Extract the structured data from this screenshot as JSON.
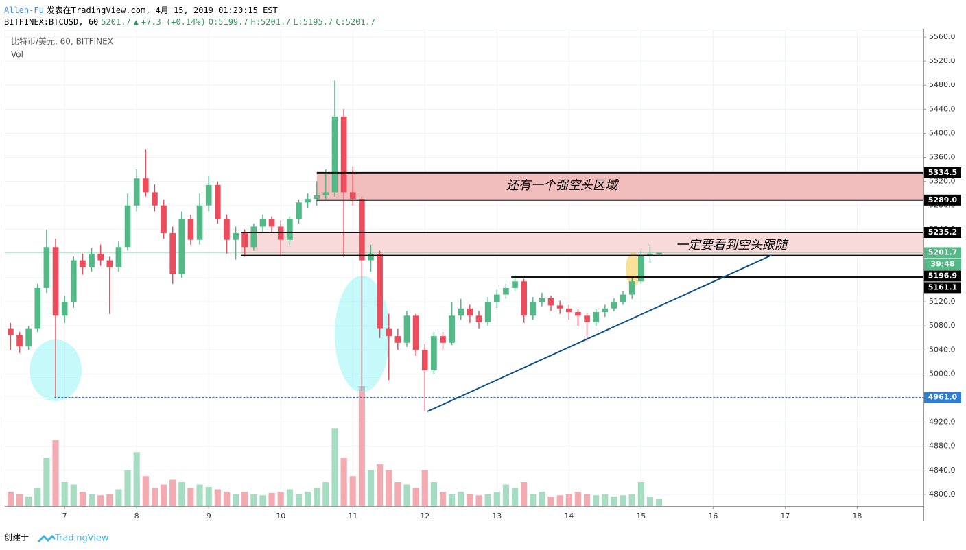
{
  "header": {
    "author": "Allen-Fu",
    "published": "发表在TradingView.com, 4月 15, 2019 01:20:15 EST",
    "symbol": "BITFINEX:BTCUSD, 60",
    "last": "5201.7",
    "change": "+7.3 (+0.14%)",
    "open": "O:5199.7",
    "high": "H:5201.7",
    "low": "L:5195.7",
    "close": "C:5201.7"
  },
  "chart_data": {
    "type": "candlestick",
    "legend": "比特币/美元, 60, BITFINEX",
    "volume_label": "Vol",
    "up_color": "#53b987",
    "down_color": "#eb4d5c",
    "grid": true,
    "x": [
      6.25,
      6.375,
      6.5,
      6.625,
      6.75,
      6.875,
      7,
      7.125,
      7.25,
      7.375,
      7.5,
      7.625,
      7.75,
      7.875,
      8,
      8.125,
      8.25,
      8.375,
      8.5,
      8.625,
      8.75,
      8.875,
      9,
      9.125,
      9.25,
      9.375,
      9.5,
      9.625,
      9.75,
      9.875,
      10,
      10.125,
      10.25,
      10.375,
      10.5,
      10.625,
      10.75,
      10.875,
      11,
      11.125,
      11.25,
      11.375,
      11.5,
      11.625,
      11.75,
      11.875,
      12,
      12.125,
      12.25,
      12.375,
      12.5,
      12.625,
      12.75,
      12.875,
      13,
      13.125,
      13.25,
      13.375,
      13.5,
      13.625,
      13.75,
      13.875,
      14,
      14.125,
      14.25,
      14.375,
      14.5,
      14.625,
      14.75,
      14.875,
      15,
      15.125,
      15.25
    ],
    "candles": [
      [
        5075,
        5085,
        5040,
        5065
      ],
      [
        5065,
        5070,
        5035,
        5046
      ],
      [
        5046,
        5080,
        5040,
        5075
      ],
      [
        5075,
        5150,
        5070,
        5143
      ],
      [
        5143,
        5240,
        5135,
        5211
      ],
      [
        5211,
        5225,
        4961,
        5097
      ],
      [
        5097,
        5130,
        5085,
        5120
      ],
      [
        5120,
        5195,
        5110,
        5189
      ],
      [
        5189,
        5200,
        5165,
        5177
      ],
      [
        5177,
        5210,
        5170,
        5200
      ],
      [
        5200,
        5215,
        5180,
        5189
      ],
      [
        5189,
        5195,
        5100,
        5177
      ],
      [
        5177,
        5220,
        5170,
        5211
      ],
      [
        5211,
        5300,
        5205,
        5280
      ],
      [
        5280,
        5340,
        5270,
        5325
      ],
      [
        5325,
        5374,
        5295,
        5302
      ],
      [
        5302,
        5315,
        5270,
        5280
      ],
      [
        5280,
        5290,
        5225,
        5234
      ],
      [
        5234,
        5245,
        5150,
        5166
      ],
      [
        5166,
        5270,
        5160,
        5257
      ],
      [
        5257,
        5265,
        5215,
        5223
      ],
      [
        5223,
        5300,
        5215,
        5280
      ],
      [
        5280,
        5330,
        5270,
        5314
      ],
      [
        5314,
        5320,
        5250,
        5257
      ],
      [
        5257,
        5265,
        5200,
        5223
      ],
      [
        5223,
        5245,
        5190,
        5234
      ],
      [
        5234,
        5240,
        5195,
        5211
      ],
      [
        5211,
        5250,
        5205,
        5245
      ],
      [
        5245,
        5265,
        5235,
        5257
      ],
      [
        5257,
        5262,
        5235,
        5245
      ],
      [
        5245,
        5255,
        5195,
        5223
      ],
      [
        5223,
        5262,
        5215,
        5257
      ],
      [
        5257,
        5290,
        5250,
        5285
      ],
      [
        5285,
        5300,
        5275,
        5291
      ],
      [
        5291,
        5320,
        5280,
        5297
      ],
      [
        5297,
        5340,
        5290,
        5302
      ],
      [
        5302,
        5488,
        5295,
        5428
      ],
      [
        5428,
        5440,
        5194,
        5302
      ],
      [
        5302,
        5345,
        5280,
        5291
      ],
      [
        5291,
        5295,
        4972,
        5189
      ],
      [
        5189,
        5215,
        5170,
        5200
      ],
      [
        5200,
        5205,
        5060,
        5075
      ],
      [
        5075,
        5100,
        4990,
        5063
      ],
      [
        5063,
        5075,
        5040,
        5052
      ],
      [
        5052,
        5105,
        5045,
        5097
      ],
      [
        5097,
        5100,
        5030,
        5040
      ],
      [
        5040,
        5050,
        4938,
        5006
      ],
      [
        5006,
        5070,
        5000,
        5063
      ],
      [
        5063,
        5070,
        5040,
        5052
      ],
      [
        5052,
        5120,
        5048,
        5097
      ],
      [
        5097,
        5125,
        5090,
        5109
      ],
      [
        5109,
        5115,
        5085,
        5097
      ],
      [
        5097,
        5105,
        5075,
        5086
      ],
      [
        5086,
        5128,
        5080,
        5120
      ],
      [
        5120,
        5140,
        5110,
        5132
      ],
      [
        5132,
        5150,
        5125,
        5143
      ],
      [
        5143,
        5165,
        5138,
        5154
      ],
      [
        5154,
        5158,
        5085,
        5097
      ],
      [
        5097,
        5128,
        5090,
        5120
      ],
      [
        5120,
        5135,
        5112,
        5126
      ],
      [
        5126,
        5130,
        5105,
        5114
      ],
      [
        5114,
        5122,
        5100,
        5109
      ],
      [
        5109,
        5115,
        5090,
        5103
      ],
      [
        5103,
        5108,
        5080,
        5097
      ],
      [
        5097,
        5102,
        5055,
        5086
      ],
      [
        5086,
        5108,
        5080,
        5103
      ],
      [
        5103,
        5115,
        5095,
        5109
      ],
      [
        5109,
        5126,
        5104,
        5120
      ],
      [
        5120,
        5138,
        5115,
        5132
      ],
      [
        5132,
        5160,
        5125,
        5154
      ],
      [
        5154,
        5205,
        5150,
        5197
      ],
      [
        5197,
        5215,
        5185,
        5200
      ],
      [
        5199.7,
        5201.7,
        5195.7,
        5201.7
      ]
    ],
    "volume": [
      12,
      10,
      8,
      15,
      40,
      55,
      20,
      18,
      12,
      10,
      9,
      10,
      14,
      30,
      45,
      25,
      15,
      18,
      22,
      20,
      15,
      18,
      16,
      14,
      12,
      10,
      12,
      10,
      9,
      11,
      12,
      14,
      10,
      12,
      15,
      20,
      65,
      40,
      25,
      100,
      30,
      35,
      30,
      20,
      18,
      15,
      30,
      20,
      12,
      10,
      12,
      10,
      9,
      10,
      12,
      18,
      15,
      20,
      10,
      12,
      8,
      9,
      10,
      12,
      10,
      9,
      10,
      8,
      9,
      10,
      20,
      8,
      6
    ],
    "vlim": [
      0,
      100
    ],
    "xlim": [
      6.17,
      18.92
    ],
    "xticks": [
      7,
      8,
      9,
      10,
      11,
      12,
      13,
      14,
      15,
      16,
      17,
      18
    ],
    "ylim": [
      4780.5,
      5573.7
    ],
    "yticks": [
      {
        "value": 5560,
        "label": "5560.0"
      },
      {
        "value": 5520,
        "label": "5520.0"
      },
      {
        "value": 5480,
        "label": "5480.0"
      },
      {
        "value": 5440,
        "label": "5440.0"
      },
      {
        "value": 5400,
        "label": "5400.0"
      },
      {
        "value": 5360,
        "label": "5360.0"
      },
      {
        "value": 5320,
        "label": "5320.0"
      },
      {
        "value": 5280,
        "label": "5280.0"
      },
      {
        "value": 5240,
        "label": "5240.0"
      },
      {
        "value": 5200,
        "label": "5200.0"
      },
      {
        "value": 5160,
        "label": "5160.0"
      },
      {
        "value": 5120,
        "label": "5120.0"
      },
      {
        "value": 5080,
        "label": "5080.0"
      },
      {
        "value": 5040,
        "label": "5040.0"
      },
      {
        "value": 5000,
        "label": "5000.0"
      },
      {
        "value": 4960,
        "label": "4960.0"
      },
      {
        "value": 4920,
        "label": "4920.0"
      },
      {
        "value": 4880,
        "label": "4880.0"
      },
      {
        "value": 4840,
        "label": "4840.0"
      },
      {
        "value": 4800,
        "label": "4800.0"
      }
    ],
    "zones": [
      {
        "from": 10.5,
        "low": 5289,
        "high": 5334.5,
        "color": "#f2bdbd"
      },
      {
        "from": 9.45,
        "low": 5196.9,
        "high": 5235.2,
        "color": "#f8dada"
      }
    ],
    "levels": [
      {
        "value": 5334.5,
        "label": "5334.5",
        "from": 10.5
      },
      {
        "value": 5289,
        "label": "5289.0",
        "from": 10.5
      },
      {
        "value": 5235.2,
        "label": "5235.2",
        "from": 9.45
      },
      {
        "value": 5196.9,
        "label": "5196.9",
        "from": 9.45
      },
      {
        "value": 5161.1,
        "label": "5161.1",
        "from": 13.2
      }
    ],
    "support": {
      "value": 4961,
      "label": "4961.0",
      "from": 6.86,
      "color": "#2f7fd0"
    },
    "last_price": {
      "value": 5201.7,
      "label": "5201.7"
    },
    "countdown": "39:48",
    "annotations": [
      "还有一个强空头区域",
      "一定要看到空头跟随"
    ]
  },
  "footer": {
    "created": "创建于",
    "brand": "TradingView"
  }
}
